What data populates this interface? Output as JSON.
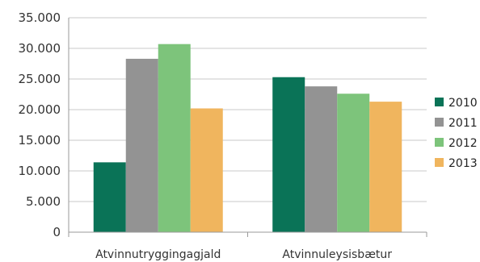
{
  "chart_data": {
    "type": "bar",
    "categories": [
      "Atvinnutryggingagjald",
      "Atvinnuleysisbætur"
    ],
    "series": [
      {
        "name": "2010",
        "color": "#0a7357",
        "values": [
          11400,
          25300
        ]
      },
      {
        "name": "2011",
        "color": "#939393",
        "values": [
          28300,
          23800
        ]
      },
      {
        "name": "2012",
        "color": "#7dc47b",
        "values": [
          30700,
          22600
        ]
      },
      {
        "name": "2013",
        "color": "#f0b55e",
        "values": [
          20200,
          21300
        ]
      }
    ],
    "ylim": [
      0,
      35000
    ],
    "yticks": [
      0,
      5000,
      10000,
      15000,
      20000,
      25000,
      30000,
      35000
    ],
    "ytick_labels": [
      "0",
      "5.000",
      "10.000",
      "15.000",
      "20.000",
      "25.000",
      "30.000",
      "35.000"
    ],
    "grid": true,
    "legend_position": "right",
    "title": "",
    "xlabel": "",
    "ylabel": ""
  }
}
